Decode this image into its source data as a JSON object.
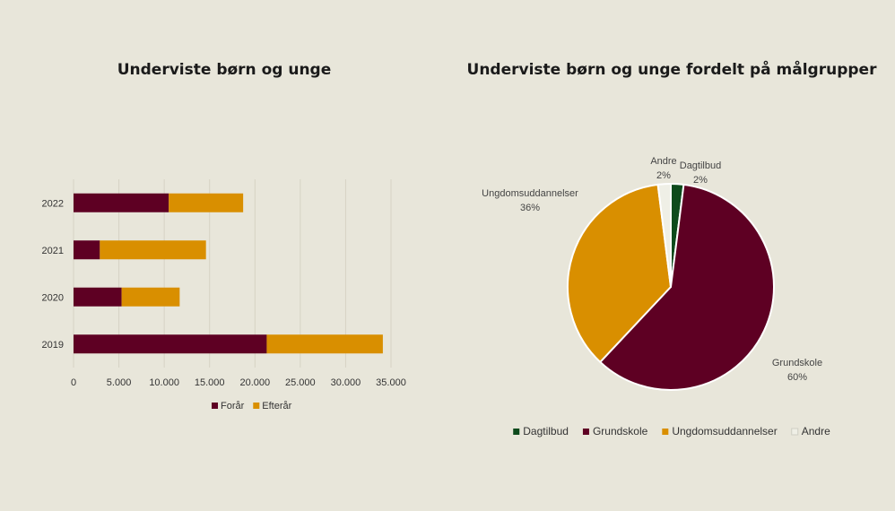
{
  "charts": {
    "bar": {
      "type": "bar",
      "orientation": "horizontal",
      "stacked": true,
      "title": "Underviste børn og unge",
      "categories": [
        "2019",
        "2020",
        "2021",
        "2022"
      ],
      "series": [
        {
          "name": "Forår",
          "color": "#5e0023",
          "values": [
            21300,
            5300,
            2900,
            10500
          ]
        },
        {
          "name": "Efterår",
          "color": "#d98f00",
          "values": [
            12800,
            6400,
            11700,
            8200
          ]
        }
      ],
      "xlim": [
        0,
        35000
      ],
      "xticks": [
        0,
        5000,
        10000,
        15000,
        20000,
        25000,
        30000,
        35000
      ],
      "xtick_labels": [
        "0",
        "5.000",
        "10.000",
        "15.000",
        "20.000",
        "25.000",
        "30.000",
        "35.000"
      ],
      "grid": true,
      "legend": "bottom"
    },
    "pie": {
      "type": "pie",
      "title": "Underviste børn og unge fordelt på målgrupper",
      "slices": [
        {
          "label": "Dagtilbud",
          "value": 2,
          "pct_label": "2%",
          "color": "#0d4a1c"
        },
        {
          "label": "Grundskole",
          "value": 60,
          "pct_label": "60%",
          "color": "#5e0023"
        },
        {
          "label": "Ungdomsuddannelser",
          "value": 36,
          "pct_label": "36%",
          "color": "#d98f00"
        },
        {
          "label": "Andre",
          "value": 2,
          "pct_label": "2%",
          "color": "#efefe6"
        }
      ],
      "legend": "bottom"
    }
  }
}
